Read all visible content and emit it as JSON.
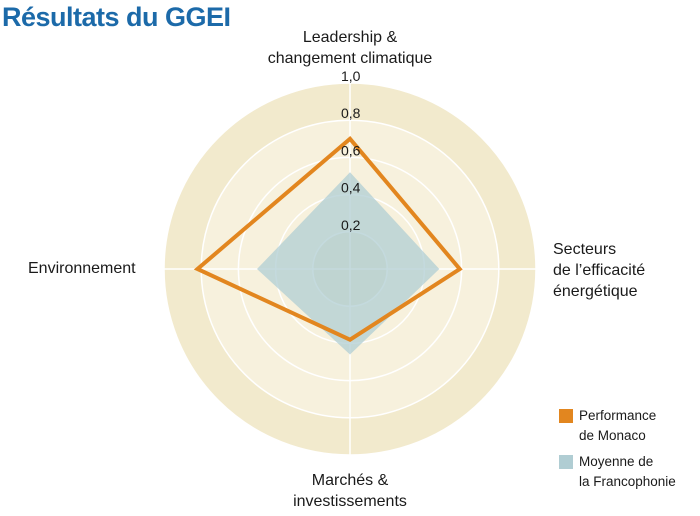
{
  "title": "Résultats du GGEI",
  "chart_data": {
    "type": "radar",
    "title": "Résultats du GGEI",
    "axes": [
      {
        "lines": [
          "Leadership &",
          "changement climatique"
        ]
      },
      {
        "lines": [
          "Secteurs",
          "de l’efficacité",
          "énergétique"
        ]
      },
      {
        "lines": [
          "Marchés &",
          "investissements"
        ]
      },
      {
        "lines": [
          "Environnement"
        ]
      }
    ],
    "rlim": [
      0,
      1.0
    ],
    "ticks": [
      "0,2",
      "0,4",
      "0,6",
      "0,8",
      "1,0"
    ],
    "tick_values": [
      0.2,
      0.4,
      0.6,
      0.8,
      1.0
    ],
    "series": [
      {
        "name": "Performance de Monaco",
        "lines": [
          "Performance",
          "de Monaco"
        ],
        "values": [
          0.7,
          0.59,
          0.38,
          0.82
        ],
        "color": "#e2861f",
        "style": "outline"
      },
      {
        "name": "Moyenne de la Francophonie",
        "lines": [
          "Moyenne de",
          "la Francophonie"
        ],
        "values": [
          0.52,
          0.48,
          0.46,
          0.5
        ],
        "color": "#b0cdd3",
        "style": "filled"
      }
    ],
    "legend_position": "bottom-right",
    "background_colors": {
      "outer": "#f2eacd",
      "inner": "#f7f1dd",
      "center": "#ece6c9"
    }
  }
}
